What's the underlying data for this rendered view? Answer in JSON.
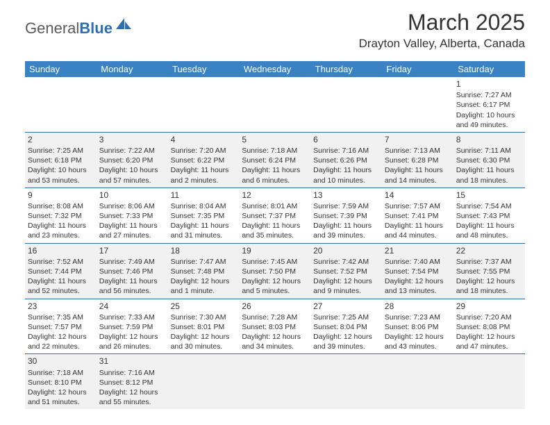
{
  "logo": {
    "part1": "General",
    "part2": "Blue"
  },
  "header": {
    "month": "March 2025",
    "location": "Drayton Valley, Alberta, Canada"
  },
  "colors": {
    "header_bg": "#3b82c4",
    "header_fg": "#ffffff",
    "rule": "#2d6fb5",
    "alt_bg": "#f1f1f1",
    "logo_blue": "#2d6fb5",
    "logo_gray": "#5a5a5a"
  },
  "daynames": [
    "Sunday",
    "Monday",
    "Tuesday",
    "Wednesday",
    "Thursday",
    "Friday",
    "Saturday"
  ],
  "first_day_index": 6,
  "days": [
    {
      "n": 1,
      "sr": "7:27 AM",
      "ss": "6:17 PM",
      "dl": "10 hours and 49 minutes."
    },
    {
      "n": 2,
      "sr": "7:25 AM",
      "ss": "6:18 PM",
      "dl": "10 hours and 53 minutes."
    },
    {
      "n": 3,
      "sr": "7:22 AM",
      "ss": "6:20 PM",
      "dl": "10 hours and 57 minutes."
    },
    {
      "n": 4,
      "sr": "7:20 AM",
      "ss": "6:22 PM",
      "dl": "11 hours and 2 minutes."
    },
    {
      "n": 5,
      "sr": "7:18 AM",
      "ss": "6:24 PM",
      "dl": "11 hours and 6 minutes."
    },
    {
      "n": 6,
      "sr": "7:16 AM",
      "ss": "6:26 PM",
      "dl": "11 hours and 10 minutes."
    },
    {
      "n": 7,
      "sr": "7:13 AM",
      "ss": "6:28 PM",
      "dl": "11 hours and 14 minutes."
    },
    {
      "n": 8,
      "sr": "7:11 AM",
      "ss": "6:30 PM",
      "dl": "11 hours and 18 minutes."
    },
    {
      "n": 9,
      "sr": "8:08 AM",
      "ss": "7:32 PM",
      "dl": "11 hours and 23 minutes."
    },
    {
      "n": 10,
      "sr": "8:06 AM",
      "ss": "7:33 PM",
      "dl": "11 hours and 27 minutes."
    },
    {
      "n": 11,
      "sr": "8:04 AM",
      "ss": "7:35 PM",
      "dl": "11 hours and 31 minutes."
    },
    {
      "n": 12,
      "sr": "8:01 AM",
      "ss": "7:37 PM",
      "dl": "11 hours and 35 minutes."
    },
    {
      "n": 13,
      "sr": "7:59 AM",
      "ss": "7:39 PM",
      "dl": "11 hours and 39 minutes."
    },
    {
      "n": 14,
      "sr": "7:57 AM",
      "ss": "7:41 PM",
      "dl": "11 hours and 44 minutes."
    },
    {
      "n": 15,
      "sr": "7:54 AM",
      "ss": "7:43 PM",
      "dl": "11 hours and 48 minutes."
    },
    {
      "n": 16,
      "sr": "7:52 AM",
      "ss": "7:44 PM",
      "dl": "11 hours and 52 minutes."
    },
    {
      "n": 17,
      "sr": "7:49 AM",
      "ss": "7:46 PM",
      "dl": "11 hours and 56 minutes."
    },
    {
      "n": 18,
      "sr": "7:47 AM",
      "ss": "7:48 PM",
      "dl": "12 hours and 1 minute."
    },
    {
      "n": 19,
      "sr": "7:45 AM",
      "ss": "7:50 PM",
      "dl": "12 hours and 5 minutes."
    },
    {
      "n": 20,
      "sr": "7:42 AM",
      "ss": "7:52 PM",
      "dl": "12 hours and 9 minutes."
    },
    {
      "n": 21,
      "sr": "7:40 AM",
      "ss": "7:54 PM",
      "dl": "12 hours and 13 minutes."
    },
    {
      "n": 22,
      "sr": "7:37 AM",
      "ss": "7:55 PM",
      "dl": "12 hours and 18 minutes."
    },
    {
      "n": 23,
      "sr": "7:35 AM",
      "ss": "7:57 PM",
      "dl": "12 hours and 22 minutes."
    },
    {
      "n": 24,
      "sr": "7:33 AM",
      "ss": "7:59 PM",
      "dl": "12 hours and 26 minutes."
    },
    {
      "n": 25,
      "sr": "7:30 AM",
      "ss": "8:01 PM",
      "dl": "12 hours and 30 minutes."
    },
    {
      "n": 26,
      "sr": "7:28 AM",
      "ss": "8:03 PM",
      "dl": "12 hours and 34 minutes."
    },
    {
      "n": 27,
      "sr": "7:25 AM",
      "ss": "8:04 PM",
      "dl": "12 hours and 39 minutes."
    },
    {
      "n": 28,
      "sr": "7:23 AM",
      "ss": "8:06 PM",
      "dl": "12 hours and 43 minutes."
    },
    {
      "n": 29,
      "sr": "7:20 AM",
      "ss": "8:08 PM",
      "dl": "12 hours and 47 minutes."
    },
    {
      "n": 30,
      "sr": "7:18 AM",
      "ss": "8:10 PM",
      "dl": "12 hours and 51 minutes."
    },
    {
      "n": 31,
      "sr": "7:16 AM",
      "ss": "8:12 PM",
      "dl": "12 hours and 55 minutes."
    }
  ],
  "labels": {
    "sunrise": "Sunrise:",
    "sunset": "Sunset:",
    "daylight": "Daylight:"
  }
}
